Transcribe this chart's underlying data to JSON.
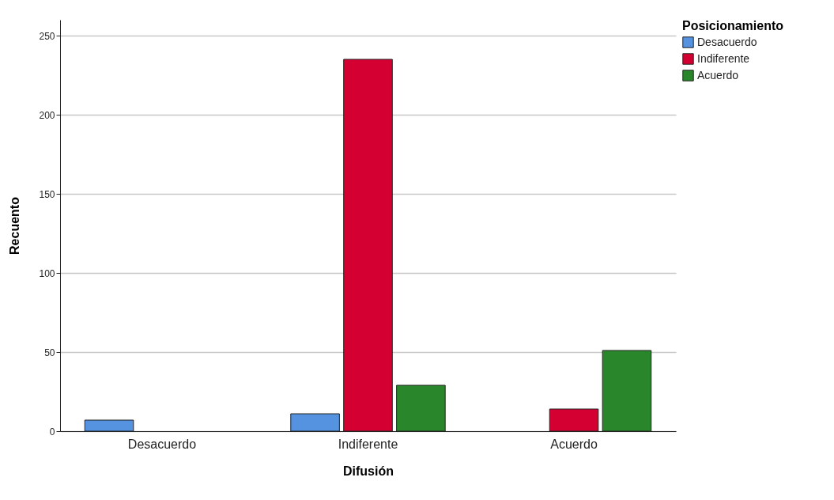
{
  "chart_data": {
    "type": "bar",
    "xlabel": "Difusión",
    "ylabel": "Recuento",
    "legend_title": "Posicionamiento",
    "categories": [
      "Desacuerdo",
      "Indiferente",
      "Acuerdo"
    ],
    "series": [
      {
        "name": "Desacuerdo",
        "color": "#5592e0",
        "values": [
          7,
          11,
          null
        ]
      },
      {
        "name": "Indiferente",
        "color": "#d50032",
        "values": [
          null,
          235,
          14
        ]
      },
      {
        "name": "Acuerdo",
        "color": "#2a862a",
        "values": [
          null,
          29,
          51
        ]
      }
    ],
    "ylim": [
      0,
      260
    ],
    "yticks": [
      0,
      50,
      100,
      150,
      200,
      250
    ],
    "grid": "y",
    "legend": "top right"
  }
}
